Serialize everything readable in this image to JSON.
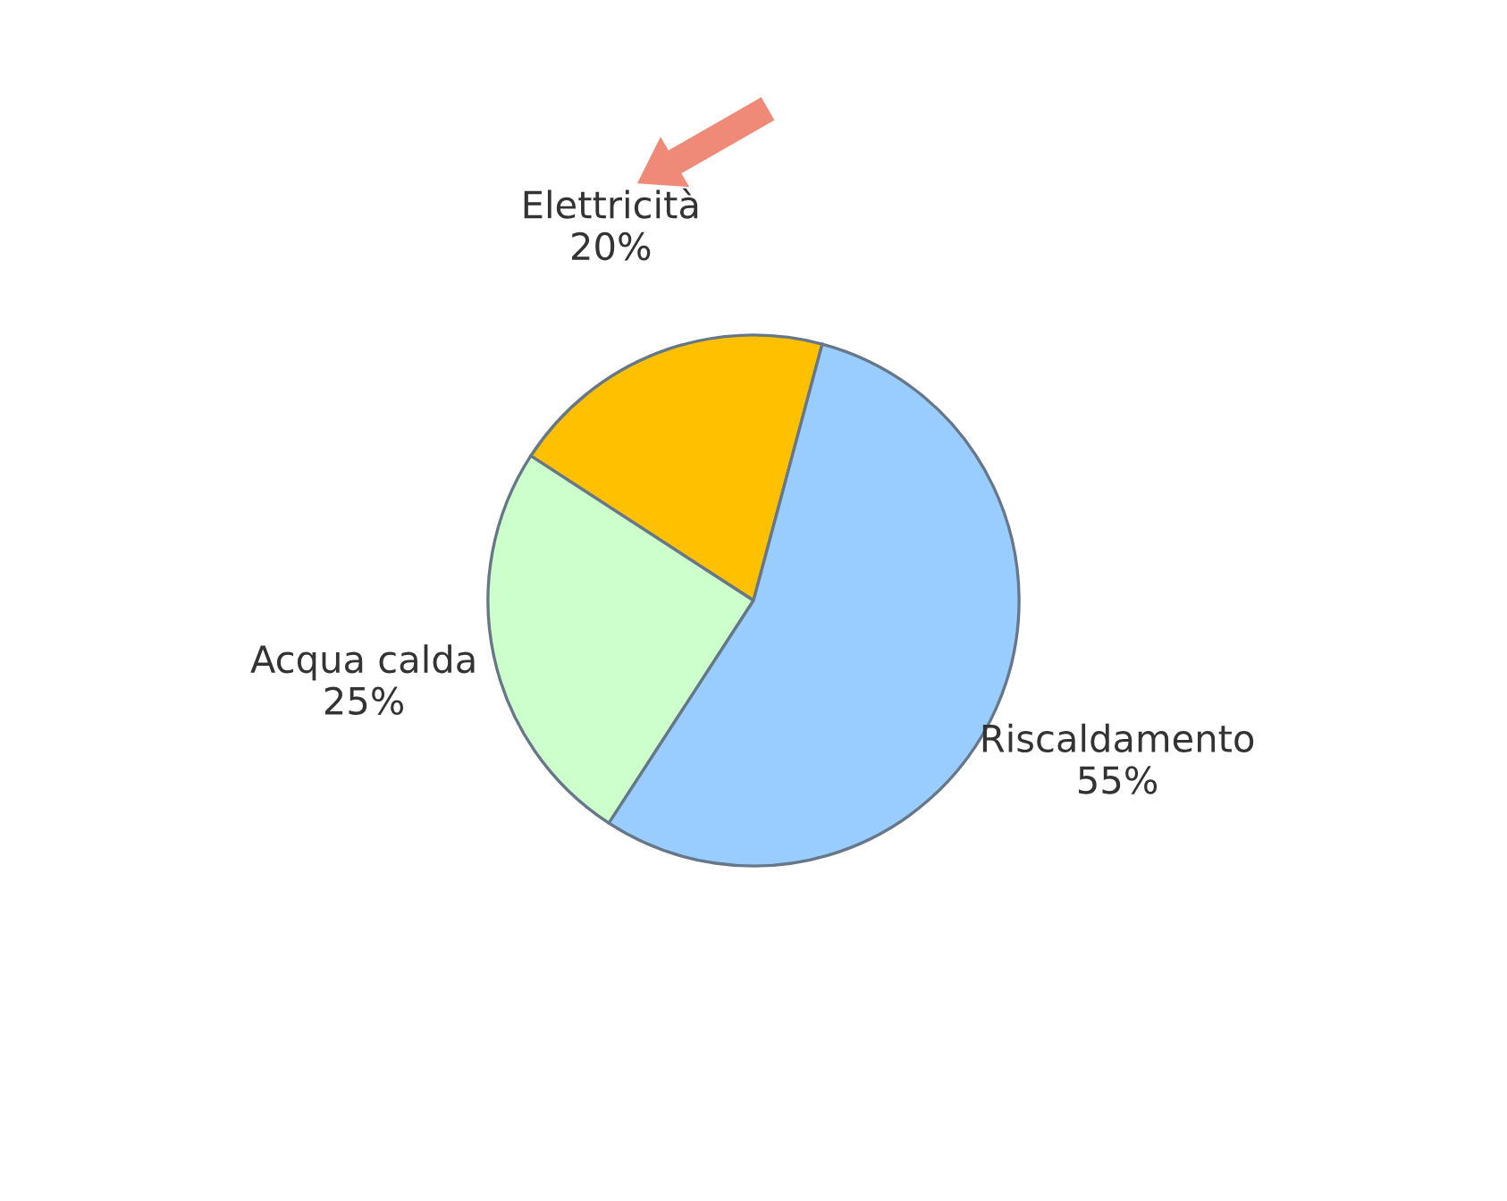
{
  "chart_data": {
    "type": "pie",
    "categories": [
      "Elettricità",
      "Acqua calda",
      "Riscaldamento"
    ],
    "values": [
      20,
      25,
      55
    ],
    "colors": [
      "#ffc000",
      "#ccffcc",
      "#99ccff"
    ],
    "value_labels": [
      "20%",
      "25%",
      "55%"
    ]
  }
}
